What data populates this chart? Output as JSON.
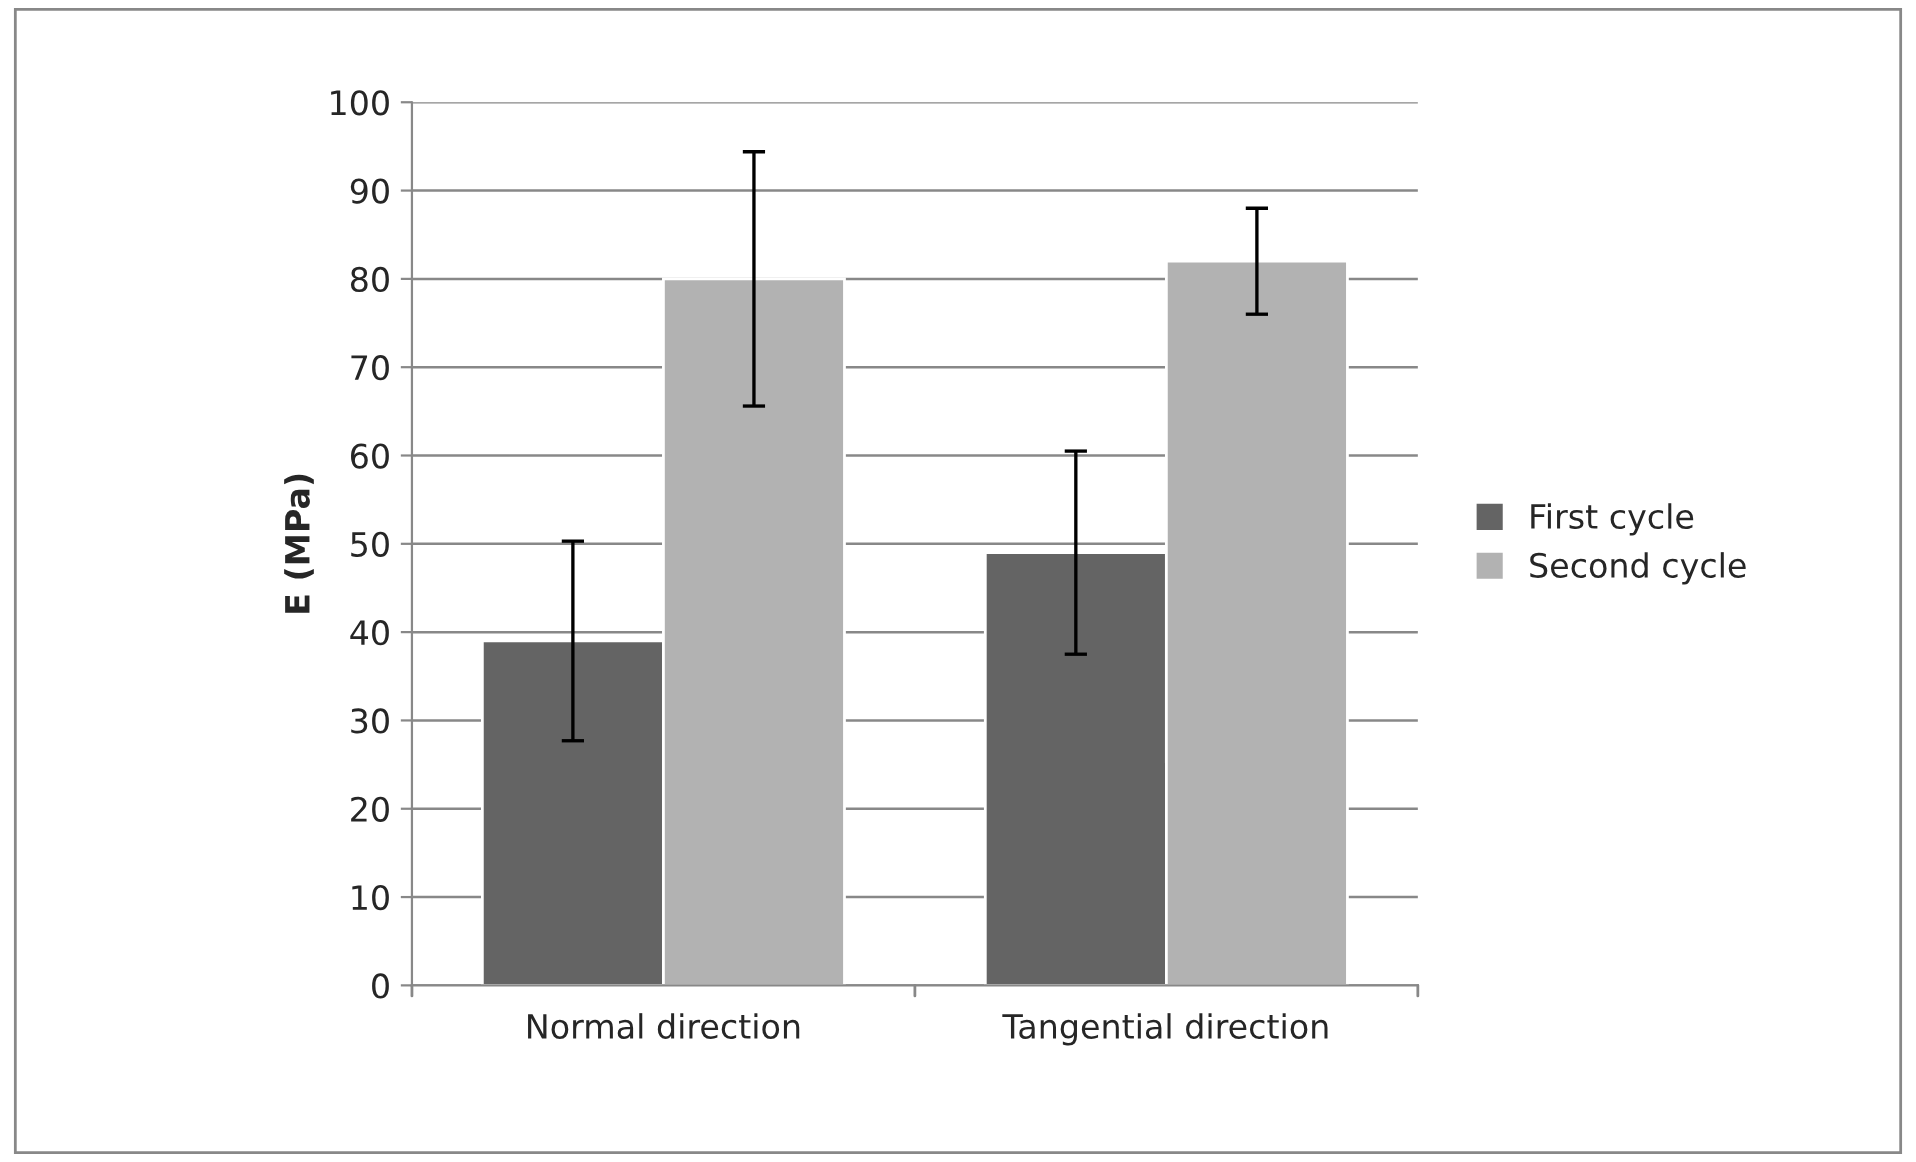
{
  "chart_data": {
    "type": "bar",
    "ylabel": "E (MPa)",
    "categories": [
      "Normal direction",
      "Tangential direction"
    ],
    "series": [
      {
        "name": "First cycle",
        "color": "#646464",
        "values": [
          39,
          49
        ],
        "errors": [
          11.3,
          11.5
        ]
      },
      {
        "name": "Second cycle",
        "color": "#b2b2b2",
        "values": [
          80,
          82
        ],
        "errors": [
          14.4,
          6
        ]
      }
    ],
    "ylim": [
      0,
      100
    ],
    "yticks": [
      0,
      10,
      20,
      30,
      40,
      50,
      60,
      70,
      80,
      90,
      100
    ],
    "grid": "y",
    "legend": "right"
  }
}
